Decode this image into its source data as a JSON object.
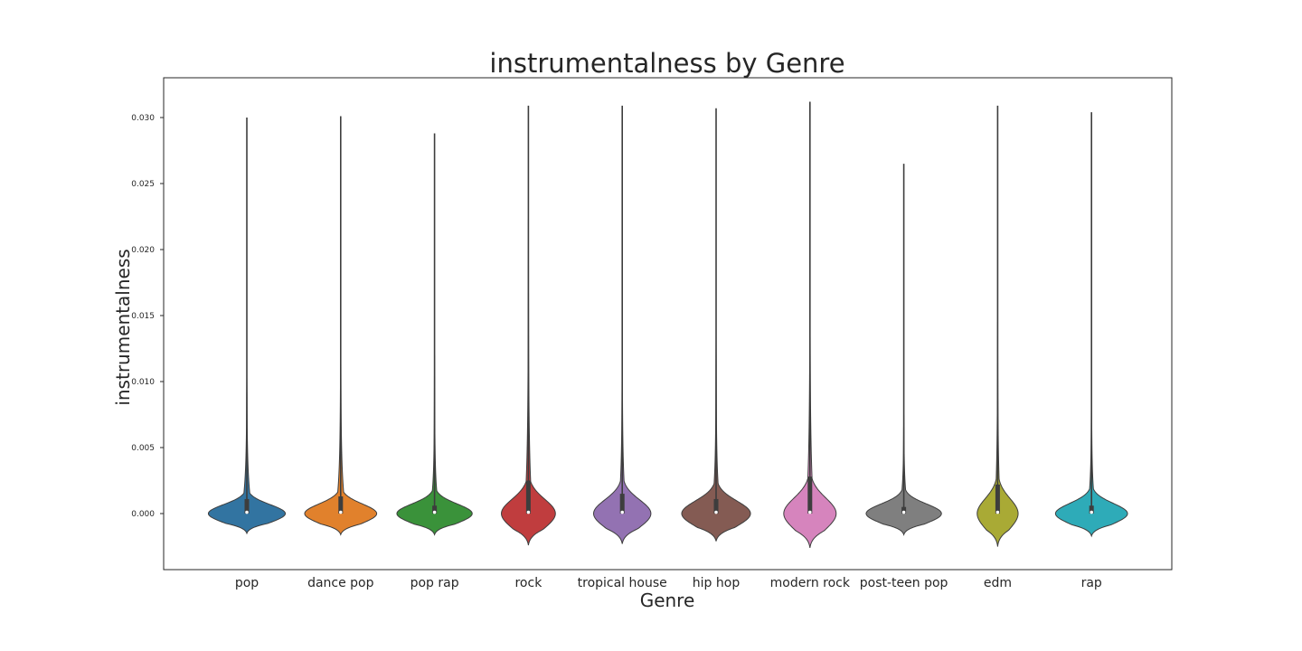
{
  "chart_data": {
    "type": "violin",
    "title": "instrumentalness by Genre",
    "xlabel": "Genre",
    "ylabel": "instrumentalness",
    "ylim": [
      -0.0042,
      0.0331
    ],
    "yticks": [
      0.0,
      0.005,
      0.01,
      0.015,
      0.02,
      0.025,
      0.03
    ],
    "ytick_labels": [
      "0.000",
      "0.005",
      "0.010",
      "0.015",
      "0.020",
      "0.025",
      "0.030"
    ],
    "grid": false,
    "categories": [
      "pop",
      "dance pop",
      "pop rap",
      "rock",
      "tropical house",
      "hip hop",
      "modern rock",
      "post-teen pop",
      "edm",
      "rap"
    ],
    "series": [
      {
        "category": "pop",
        "color": "#3274a1",
        "whisker": [
          0.0,
          0.03
        ],
        "box": [
          0.0,
          0.0011
        ],
        "median": 0.0001,
        "violin_extent": [
          -0.0015,
          0.0105
        ],
        "max_half_width": 0.47
      },
      {
        "category": "dance pop",
        "color": "#e1812c",
        "whisker": [
          0.0,
          0.0301
        ],
        "box": [
          0.0,
          0.0013
        ],
        "median": 0.0001,
        "violin_extent": [
          -0.0016,
          0.016
        ],
        "max_half_width": 0.44
      },
      {
        "category": "pop rap",
        "color": "#3a923a",
        "whisker": [
          0.0,
          0.0288
        ],
        "box": [
          0.0,
          0.0006
        ],
        "median": 0.0001,
        "violin_extent": [
          -0.0016,
          0.012
        ],
        "max_half_width": 0.46
      },
      {
        "category": "rock",
        "color": "#c03d3e",
        "whisker": [
          0.0,
          0.0309
        ],
        "box": [
          0.0,
          0.0025
        ],
        "median": 0.0001,
        "violin_extent": [
          -0.0024,
          0.0223
        ],
        "max_half_width": 0.33
      },
      {
        "category": "tropical house",
        "color": "#9372b2",
        "whisker": [
          0.0,
          0.0309
        ],
        "box": [
          0.0,
          0.0015
        ],
        "median": 0.0001,
        "violin_extent": [
          -0.0023,
          0.0145
        ],
        "max_half_width": 0.35
      },
      {
        "category": "hip hop",
        "color": "#845b53",
        "whisker": [
          0.0,
          0.0307
        ],
        "box": [
          0.0,
          0.0011
        ],
        "median": 0.0001,
        "violin_extent": [
          -0.0021,
          0.0135
        ],
        "max_half_width": 0.42
      },
      {
        "category": "modern rock",
        "color": "#d684bd",
        "whisker": [
          0.0,
          0.0312
        ],
        "box": [
          0.0,
          0.0028
        ],
        "median": 0.0001,
        "violin_extent": [
          -0.0026,
          0.0185
        ],
        "max_half_width": 0.32
      },
      {
        "category": "post-teen pop",
        "color": "#7f7f7f",
        "whisker": [
          0.0,
          0.0265
        ],
        "box": [
          0.0,
          0.0005
        ],
        "median": 0.0001,
        "violin_extent": [
          -0.0016,
          0.0075
        ],
        "max_half_width": 0.46
      },
      {
        "category": "edm",
        "color": "#a9aa35",
        "whisker": [
          0.0,
          0.0309
        ],
        "box": [
          0.0,
          0.0022
        ],
        "median": 0.0001,
        "violin_extent": [
          -0.0025,
          0.0145
        ],
        "max_half_width": 0.25
      },
      {
        "category": "rap",
        "color": "#2eabb8",
        "whisker": [
          0.0,
          0.0304
        ],
        "box": [
          0.0,
          0.0006
        ],
        "median": 0.0001,
        "violin_extent": [
          -0.0017,
          0.011
        ],
        "max_half_width": 0.44
      }
    ]
  }
}
